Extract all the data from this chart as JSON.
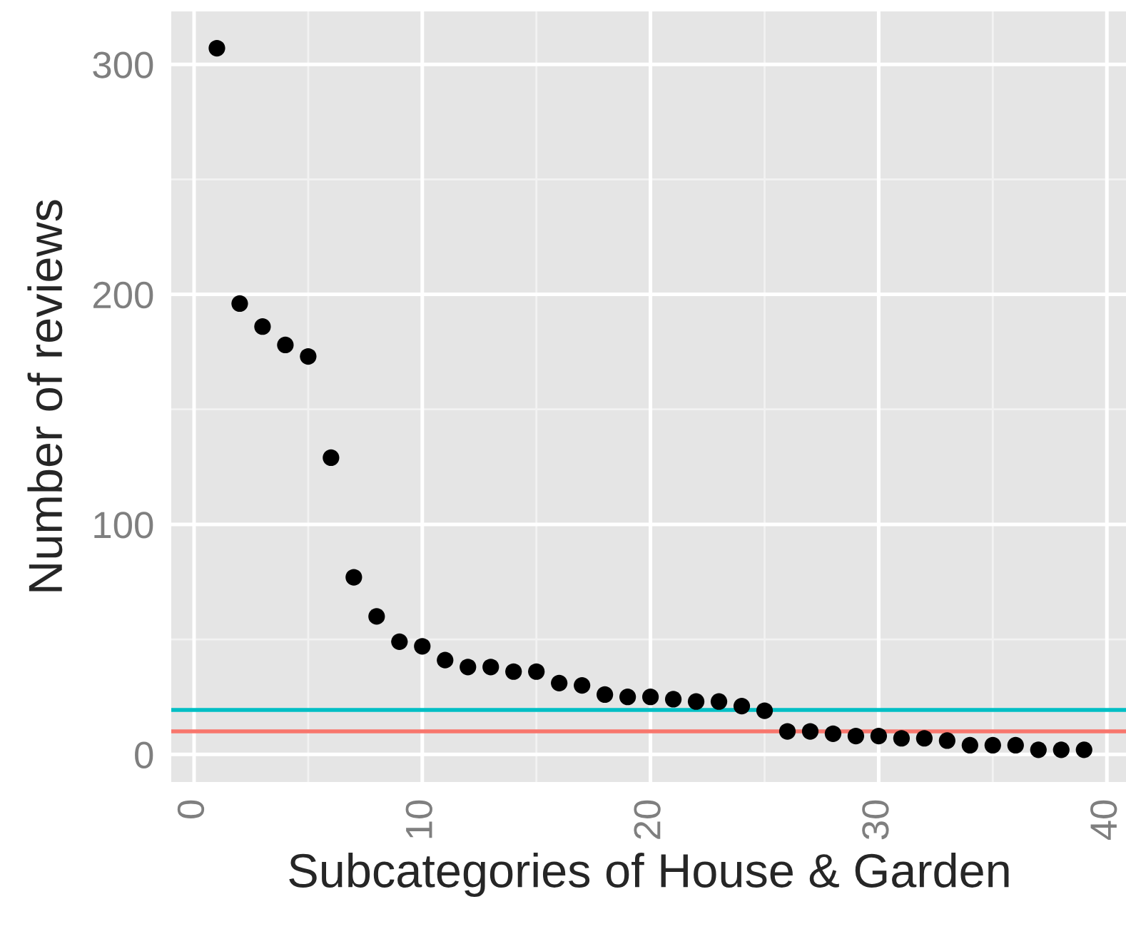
{
  "chart_data": {
    "type": "scatter",
    "xlabel": "Subcategories of House & Garden",
    "ylabel": "Number of reviews",
    "x": [
      1,
      2,
      3,
      4,
      5,
      6,
      7,
      8,
      9,
      10,
      11,
      12,
      13,
      14,
      15,
      16,
      17,
      18,
      19,
      20,
      21,
      22,
      23,
      24,
      25,
      26,
      27,
      28,
      29,
      30,
      31,
      32,
      33,
      34,
      35,
      36,
      37,
      38,
      39
    ],
    "series": [
      {
        "color": "#000000",
        "values": [
          307,
          196,
          186,
          178,
          173,
          129,
          77,
          60,
          49,
          47,
          41,
          38,
          38,
          36,
          36,
          31,
          30,
          26,
          25,
          25,
          24,
          23,
          23,
          21,
          19,
          10,
          10,
          9,
          8,
          8,
          7,
          7,
          6,
          4,
          4,
          4,
          2,
          2,
          2
        ]
      }
    ],
    "marker": "circle",
    "xlim": [
      -1,
      40.9
    ],
    "ylim": [
      -12,
      323
    ],
    "xticks": [
      0,
      10,
      20,
      30,
      40
    ],
    "yticks": [
      0,
      100,
      200,
      300
    ],
    "ref_lines": [
      {
        "axis": "y",
        "value": 19.3,
        "color": "#00bfc4"
      },
      {
        "axis": "y",
        "value": 10,
        "color": "#f8766d"
      }
    ],
    "grid": true
  }
}
